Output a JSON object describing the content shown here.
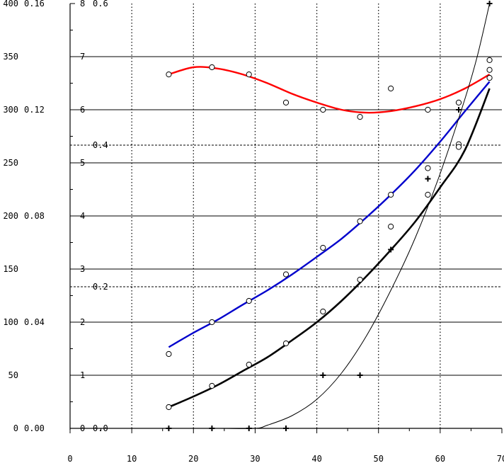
{
  "chart_data": {
    "type": "scatter",
    "title": "",
    "xlabel": "",
    "ylabel": "",
    "xlim": [
      0,
      70
    ],
    "ylim": [
      0,
      400
    ],
    "grid": true,
    "x_ticks": [
      "0",
      "10",
      "20",
      "30",
      "40",
      "50",
      "60",
      "70"
    ],
    "y_axes": [
      {
        "name": "axis-1",
        "ticks": [
          "0",
          "50",
          "100",
          "150",
          "200",
          "250",
          "300",
          "350",
          "400"
        ],
        "range": [
          0,
          400
        ]
      },
      {
        "name": "axis-2",
        "ticks": [
          "0.00",
          "0.04",
          "0.08",
          "0.12",
          "0.16"
        ],
        "range": [
          0,
          0.16
        ]
      },
      {
        "name": "axis-3",
        "ticks": [
          "0",
          "1",
          "2",
          "3",
          "4",
          "5",
          "6",
          "7",
          "8"
        ],
        "range": [
          0,
          8
        ]
      },
      {
        "name": "axis-4",
        "ticks": [
          "0.0",
          "0.2",
          "0.4",
          "0.6"
        ],
        "range": [
          0,
          0.6
        ]
      }
    ],
    "series": [
      {
        "marker": "circle",
        "color": "#ff0000",
        "axis": "axis-2",
        "x": [
          16,
          23,
          29,
          35,
          41,
          47,
          52,
          58,
          63,
          68
        ],
        "y": [
          0.1333,
          0.136,
          0.1333,
          0.1227,
          0.12,
          0.1173,
          0.128,
          0.12,
          0.1227,
          0.1387
        ],
        "fit": [
          [
            16,
            0.1333
          ],
          [
            20,
            0.136
          ],
          [
            24,
            0.1355
          ],
          [
            28,
            0.1333
          ],
          [
            32,
            0.13
          ],
          [
            36,
            0.126
          ],
          [
            40,
            0.1227
          ],
          [
            44,
            0.12
          ],
          [
            48,
            0.1189
          ],
          [
            52,
            0.1195
          ],
          [
            56,
            0.1213
          ],
          [
            60,
            0.124
          ],
          [
            64,
            0.128
          ],
          [
            68,
            0.1333
          ]
        ]
      },
      {
        "marker": "circle",
        "color": "#0000cc",
        "axis": "axis-3",
        "x": [
          16,
          23,
          29,
          35,
          41,
          47,
          52,
          58,
          63,
          68
        ],
        "y": [
          1.4,
          2.0,
          2.4,
          2.9,
          3.4,
          3.9,
          4.4,
          4.9,
          5.35,
          6.75
        ],
        "fit": [
          [
            16,
            1.53
          ],
          [
            20,
            1.8
          ],
          [
            24,
            2.05
          ],
          [
            28,
            2.33
          ],
          [
            32,
            2.6
          ],
          [
            36,
            2.9
          ],
          [
            40,
            3.23
          ],
          [
            44,
            3.57
          ],
          [
            48,
            3.97
          ],
          [
            52,
            4.4
          ],
          [
            56,
            4.87
          ],
          [
            60,
            5.4
          ],
          [
            64,
            5.97
          ],
          [
            68,
            6.53
          ]
        ]
      },
      {
        "marker": "circle",
        "color": "#000000",
        "axis": "axis-1",
        "x": [
          16,
          23,
          29,
          35,
          41,
          47,
          52,
          58,
          63,
          68
        ],
        "y": [
          20,
          40,
          60,
          80,
          110,
          140,
          190,
          220,
          265,
          330
        ],
        "fit": [
          [
            16,
            20
          ],
          [
            20,
            30
          ],
          [
            24,
            41
          ],
          [
            28,
            54
          ],
          [
            32,
            67
          ],
          [
            36,
            83
          ],
          [
            40,
            100
          ],
          [
            44,
            120
          ],
          [
            48,
            143
          ],
          [
            52,
            168
          ],
          [
            56,
            195
          ],
          [
            60,
            227
          ],
          [
            64,
            262
          ],
          [
            68,
            320
          ]
        ]
      },
      {
        "marker": "plus",
        "color": "#000000",
        "axis": "axis-4",
        "x": [
          16,
          23,
          29,
          35,
          41,
          47,
          52,
          58,
          63,
          68
        ],
        "y": [
          0.0,
          0.0,
          0.0,
          0.0,
          0.075,
          0.075,
          0.2525,
          0.3525,
          0.45,
          0.6
        ],
        "fit": [
          [
            16,
            0.0
          ],
          [
            24,
            0.0
          ],
          [
            30,
            0.0
          ],
          [
            32,
            0.0045
          ],
          [
            36,
            0.018
          ],
          [
            40,
            0.041
          ],
          [
            44,
            0.078
          ],
          [
            48,
            0.13
          ],
          [
            52,
            0.195
          ],
          [
            56,
            0.27
          ],
          [
            60,
            0.36
          ],
          [
            64,
            0.465
          ],
          [
            66,
            0.525
          ],
          [
            68,
            0.6
          ]
        ]
      }
    ]
  }
}
